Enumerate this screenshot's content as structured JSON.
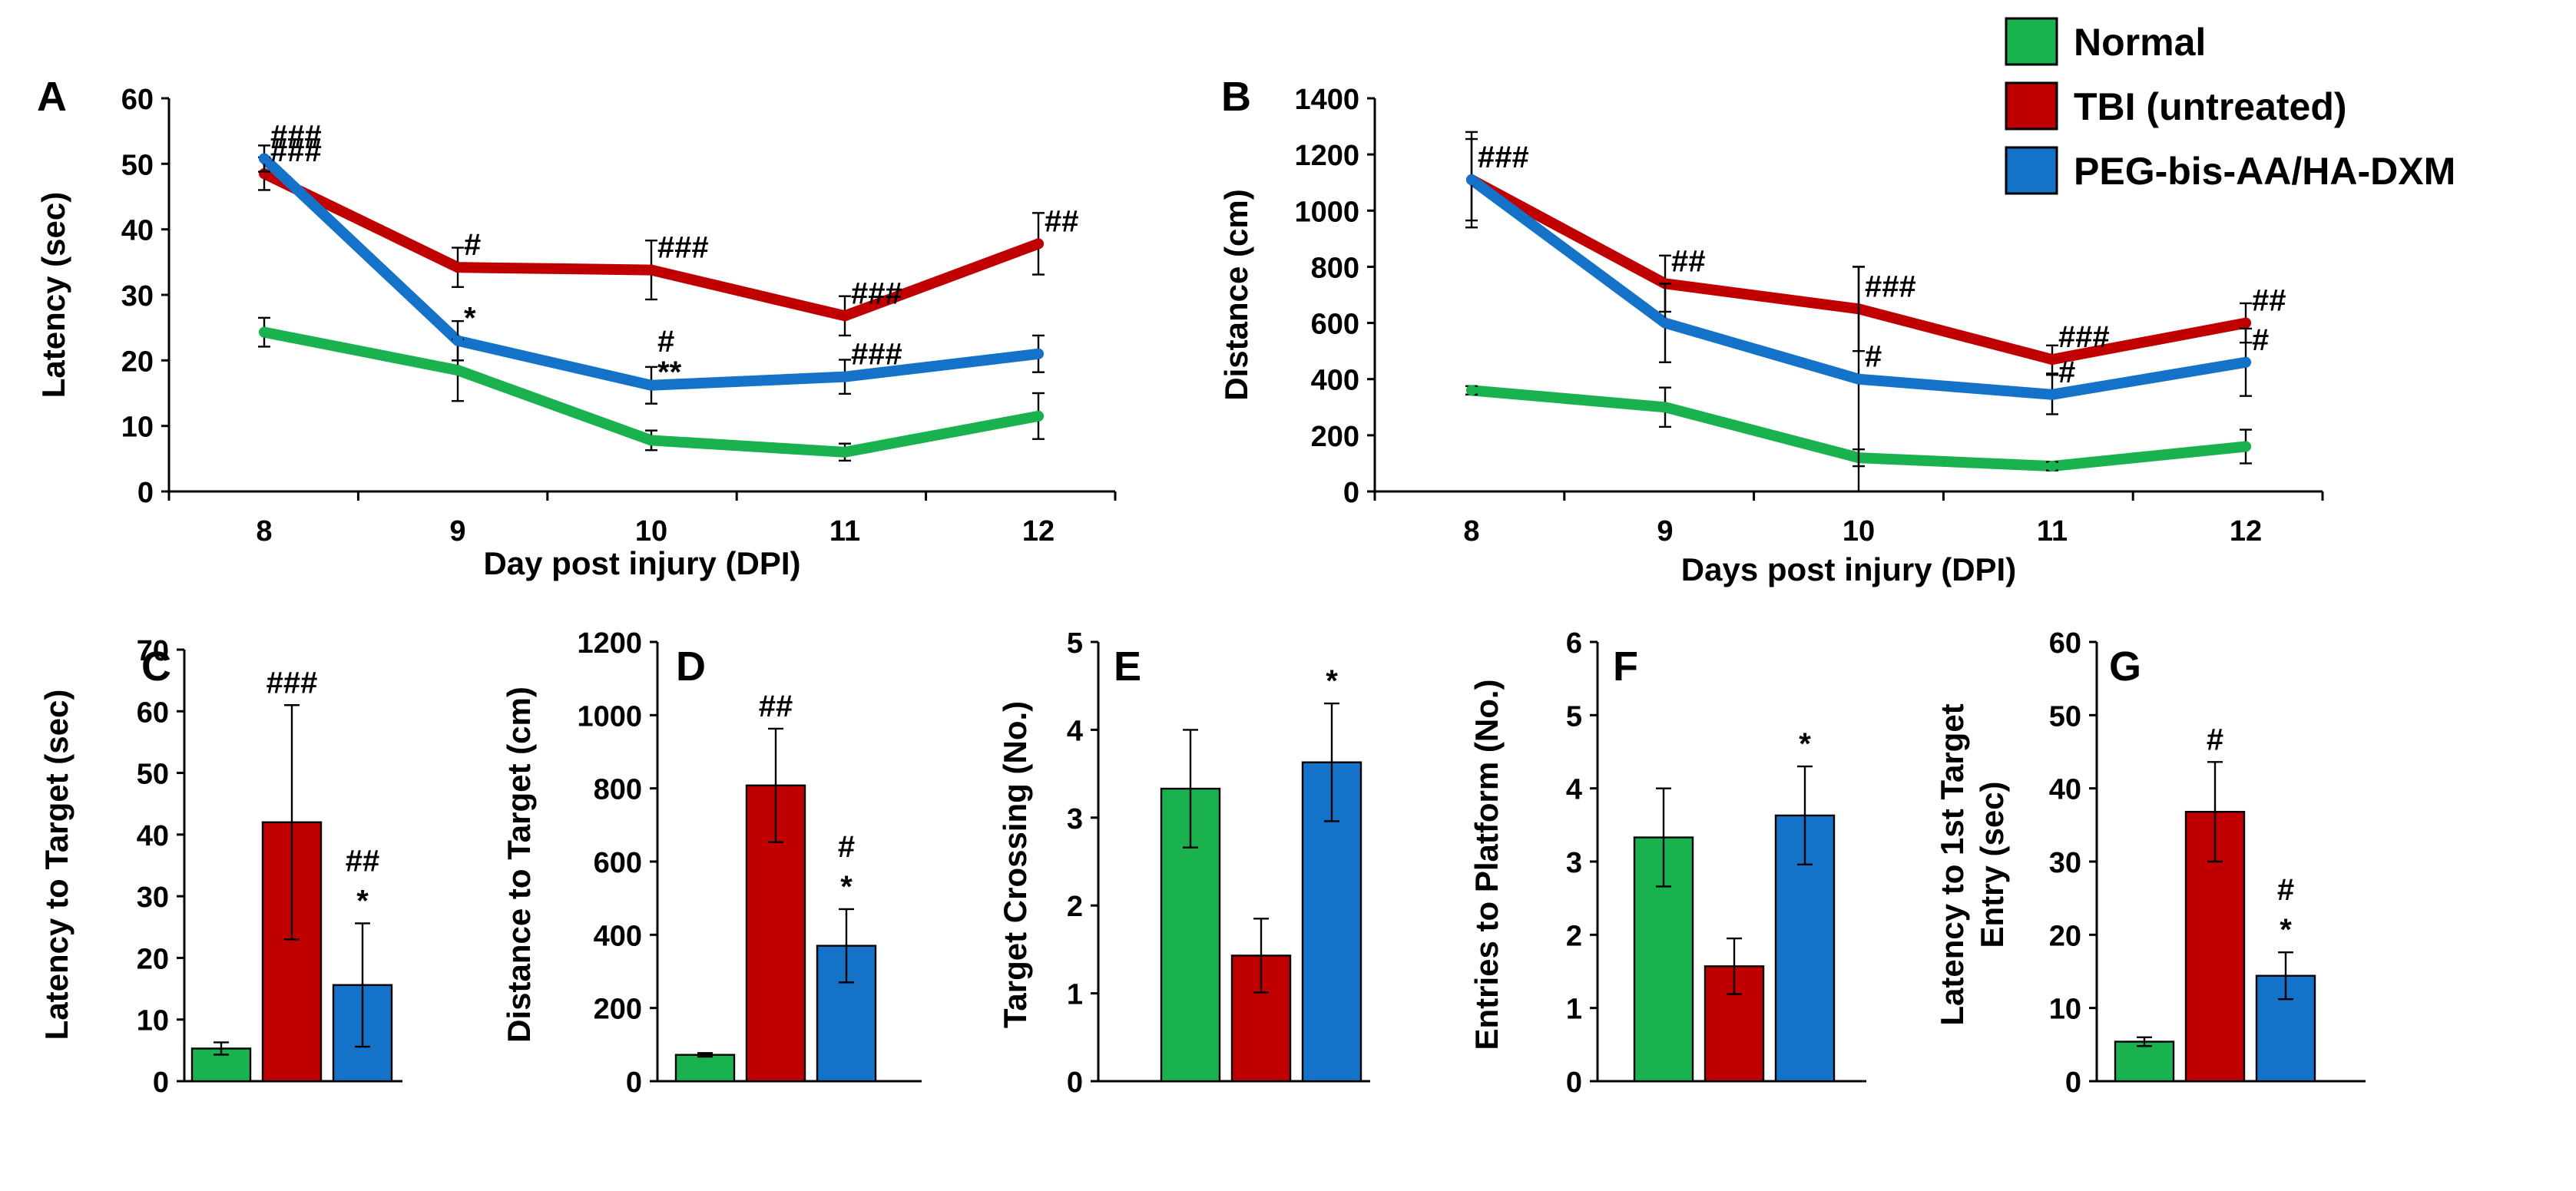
{
  "colors": {
    "Normal": "#19b24f",
    "TBI (untreated)": "#c00000",
    "PEG-bis-AA/HA-DXM": "#1473c8"
  },
  "legend": [
    "Normal",
    "TBI (untreated)",
    "PEG-bis-AA/HA-DXM"
  ],
  "chart_data": [
    {
      "id": "A",
      "type": "line",
      "panel_label": "A",
      "xlabel": "Day post injury (DPI)",
      "ylabel": "Latency (sec)",
      "categories": [
        "8",
        "9",
        "10",
        "11",
        "12"
      ],
      "ylim": [
        0,
        60
      ],
      "yticks": [
        0,
        10,
        20,
        30,
        40,
        50,
        60
      ],
      "series": [
        {
          "name": "Normal",
          "values": [
            24.3,
            18.5,
            7.8,
            6.0,
            11.5
          ],
          "errors": [
            2.2,
            4.7,
            1.5,
            1.3,
            3.5
          ],
          "annotations": [
            "",
            "",
            "",
            "",
            ""
          ]
        },
        {
          "name": "TBI (untreated)",
          "values": [
            48.5,
            34.2,
            33.8,
            26.8,
            37.8
          ],
          "errors": [
            2.5,
            3.0,
            4.5,
            3.0,
            4.7
          ],
          "annotations": [
            "###",
            "#",
            "###",
            "###",
            "##"
          ]
        },
        {
          "name": "PEG-bis-AA/HA-DXM",
          "values": [
            50.8,
            23.0,
            16.2,
            17.5,
            21.0
          ],
          "errors": [
            2.0,
            3.0,
            2.8,
            2.6,
            2.8
          ],
          "annotations": [
            "###",
            "*",
            "#\n**",
            "###",
            ""
          ]
        }
      ]
    },
    {
      "id": "B",
      "type": "line",
      "panel_label": "B",
      "xlabel": "Days post injury (DPI)",
      "ylabel": "Distance (cm)",
      "categories": [
        "8",
        "9",
        "10",
        "11",
        "12"
      ],
      "ylim": [
        0,
        1400
      ],
      "yticks": [
        0,
        200,
        400,
        600,
        800,
        1000,
        1200,
        1400
      ],
      "series": [
        {
          "name": "Normal",
          "values": [
            360,
            300,
            120,
            90,
            160
          ],
          "errors": [
            15,
            70,
            30,
            15,
            60
          ],
          "annotations": [
            "",
            "",
            "",
            "",
            ""
          ]
        },
        {
          "name": "TBI (untreated)",
          "values": [
            1110,
            740,
            650,
            470,
            600
          ],
          "errors": [
            145,
            100,
            150,
            50,
            70
          ],
          "annotations": [
            "###",
            "##",
            "###",
            "###",
            "##"
          ]
        },
        {
          "name": "PEG-bis-AA/HA-DXM",
          "values": [
            1110,
            600,
            400,
            345,
            460
          ],
          "errors": [
            170,
            140,
            400,
            70,
            120
          ],
          "annotations": [
            "##",
            "",
            "#",
            "#",
            "#"
          ]
        }
      ]
    },
    {
      "id": "C",
      "type": "bar",
      "panel_label": "C",
      "ylabel": [
        "Latency to Target (sec)"
      ],
      "ylim": [
        0,
        70
      ],
      "yticks": [
        0,
        10,
        20,
        30,
        40,
        50,
        60,
        70
      ],
      "groups": [
        "Normal",
        "TBI (untreated)",
        "PEG-bis-AA/HA-DXM"
      ],
      "values": [
        5.3,
        42.0,
        15.6
      ],
      "errors": [
        1.0,
        19.0,
        10.0
      ],
      "annotations": [
        "",
        "###",
        "##\n*"
      ]
    },
    {
      "id": "D",
      "type": "bar",
      "panel_label": "D",
      "ylabel": [
        "Distance to Target (cm)"
      ],
      "ylim": [
        0,
        1200
      ],
      "yticks": [
        0,
        200,
        400,
        600,
        800,
        1000,
        1200
      ],
      "groups": [
        "Normal",
        "TBI (untreated)",
        "PEG-bis-AA/HA-DXM"
      ],
      "values": [
        72,
        808,
        370
      ],
      "errors": [
        5,
        155,
        100
      ],
      "annotations": [
        "",
        "##",
        "#\n*"
      ]
    },
    {
      "id": "E",
      "type": "bar",
      "panel_label": "E",
      "ylabel": [
        "Target Crossing (No.)"
      ],
      "ylim": [
        0,
        5
      ],
      "yticks": [
        0,
        1,
        2,
        3,
        4,
        5
      ],
      "groups": [
        "Normal",
        "TBI (untreated)",
        "PEG-bis-AA/HA-DXM"
      ],
      "values": [
        3.33,
        1.43,
        3.63
      ],
      "errors": [
        0.67,
        0.42,
        0.67
      ],
      "annotations": [
        "",
        "",
        "*"
      ]
    },
    {
      "id": "F",
      "type": "bar",
      "panel_label": "F",
      "ylabel": [
        "Entries to Platform (No.)"
      ],
      "ylim": [
        0,
        6
      ],
      "yticks": [
        0,
        1,
        2,
        3,
        4,
        5,
        6
      ],
      "groups": [
        "Normal",
        "TBI (untreated)",
        "PEG-bis-AA/HA-DXM"
      ],
      "values": [
        3.33,
        1.57,
        3.63
      ],
      "errors": [
        0.67,
        0.38,
        0.67
      ],
      "annotations": [
        "",
        "",
        "*"
      ]
    },
    {
      "id": "G",
      "type": "bar",
      "panel_label": "G",
      "ylabel": [
        "Latency to 1st Target",
        "Entry (sec)"
      ],
      "ylim": [
        0,
        60
      ],
      "yticks": [
        0,
        10,
        20,
        30,
        40,
        50,
        60
      ],
      "groups": [
        "Normal",
        "TBI (untreated)",
        "PEG-bis-AA/HA-DXM"
      ],
      "values": [
        5.4,
        36.8,
        14.4
      ],
      "errors": [
        0.6,
        6.8,
        3.2
      ],
      "annotations": [
        "",
        "#",
        "#\n*"
      ]
    }
  ]
}
